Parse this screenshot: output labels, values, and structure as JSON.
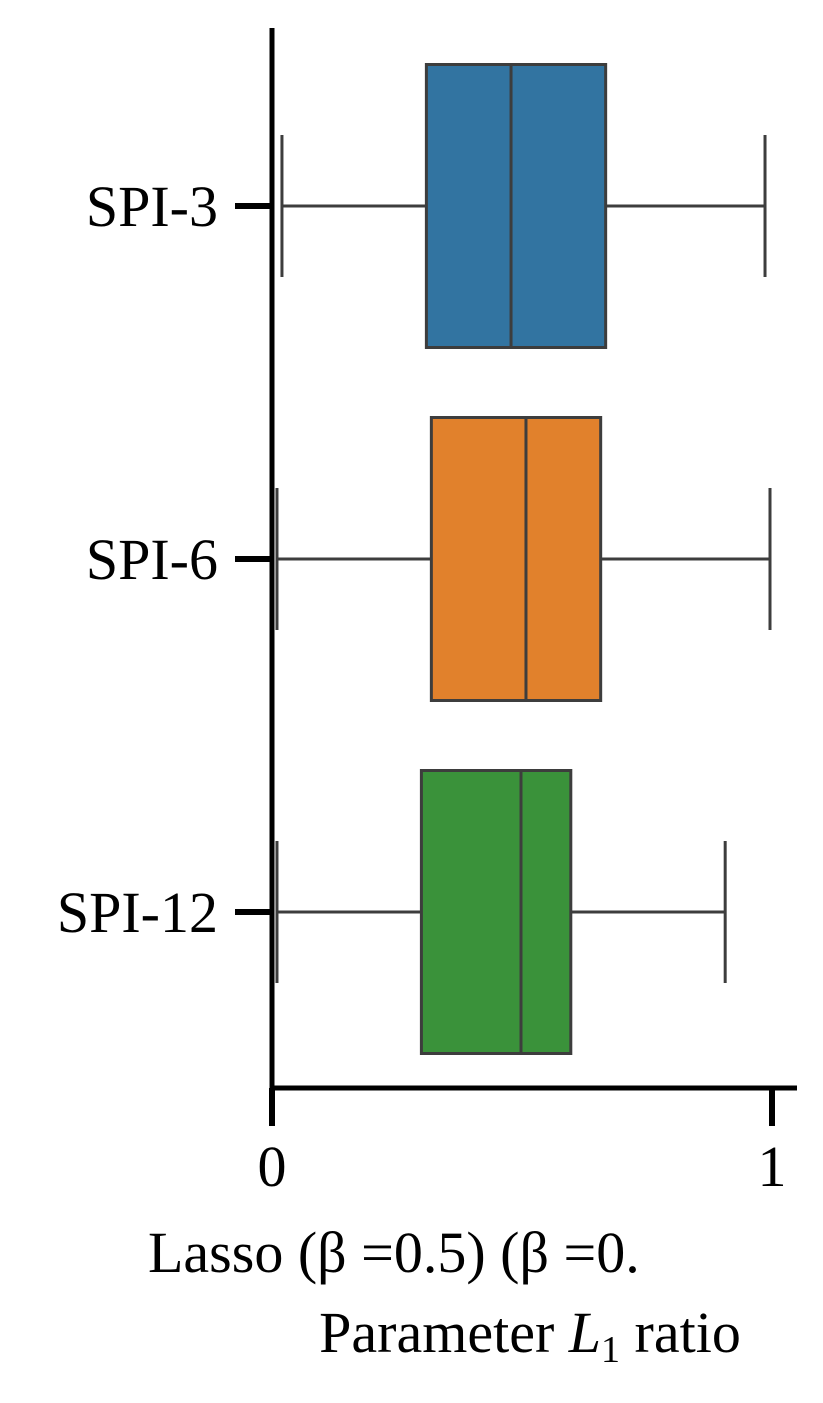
{
  "chart_data": {
    "type": "boxplot",
    "orientation": "horizontal",
    "categories": [
      "SPI-3",
      "SPI-6",
      "SPI-12"
    ],
    "boxes": [
      {
        "label": "SPI-3",
        "whisker_low": 0.02,
        "q1": 0.31,
        "median": 0.48,
        "q3": 0.67,
        "whisker_high": 0.99,
        "color": "#3274a1"
      },
      {
        "label": "SPI-6",
        "whisker_low": 0.01,
        "q1": 0.32,
        "median": 0.51,
        "q3": 0.66,
        "whisker_high": 1.0,
        "color": "#e1812c"
      },
      {
        "label": "SPI-12",
        "whisker_low": 0.01,
        "q1": 0.3,
        "median": 0.5,
        "q3": 0.6,
        "whisker_high": 0.91,
        "color": "#3a923a"
      }
    ],
    "xlim": [
      0,
      1.05
    ],
    "xticks": [
      "0",
      "1"
    ],
    "xlabel_line1": "Lasso (β =0.5) (β =0.",
    "xlabel_line2_prefix": "Parameter ",
    "xlabel_line2_var": "L",
    "xlabel_line2_sub": "1",
    "xlabel_line2_suffix": " ratio",
    "grid": false,
    "line_color": "#3d3d3d"
  }
}
